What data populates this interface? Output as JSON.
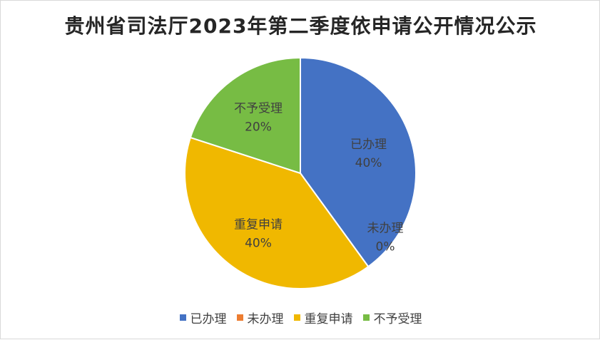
{
  "chart_data": {
    "type": "pie",
    "title": "贵州省司法厅2023年第二季度依申请公开情况公示",
    "categories": [
      "已办理",
      "未办理",
      "重复申请",
      "不予受理"
    ],
    "values": [
      40,
      0,
      40,
      20
    ],
    "value_labels": [
      "40%",
      "0%",
      "40%",
      "20%"
    ],
    "colors": [
      "#4472C4",
      "#ED7D31",
      "#F0B800",
      "#77BC44"
    ],
    "start_angle_deg": 0,
    "direction": "clockwise",
    "legend_position": "bottom"
  }
}
